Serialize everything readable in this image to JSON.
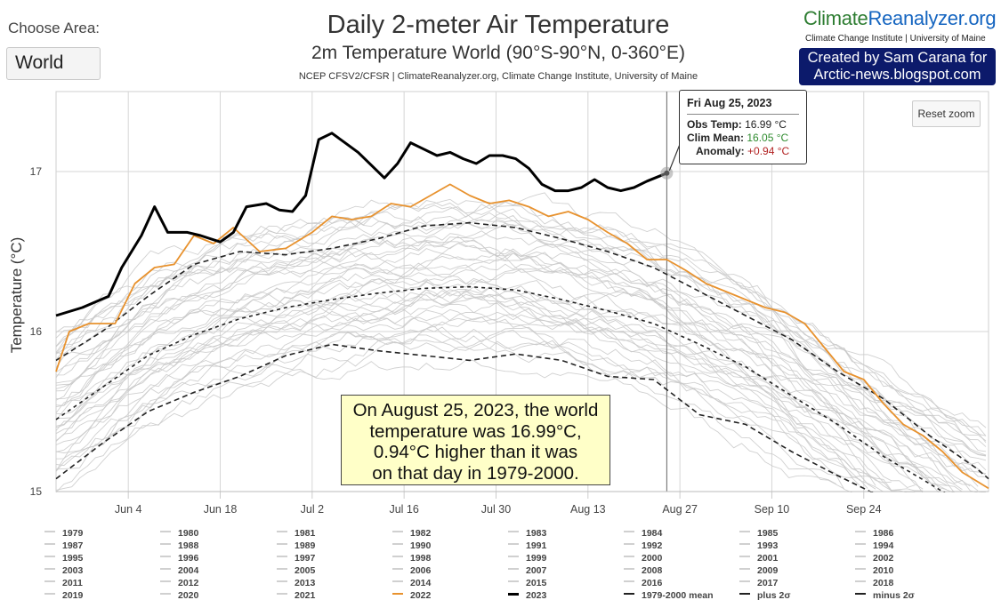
{
  "controls": {
    "choose_label": "Choose Area:",
    "area_value": "World"
  },
  "header": {
    "title": "Daily 2-meter Air Temperature",
    "subtitle": "2m Temperature World (90°S-90°N, 0-360°E)",
    "credit": "NCEP CFSV2/CFSR | ClimateReanalyzer.org, Climate Change Institute, University of Maine",
    "brand_part1": "Climate",
    "brand_part2": "Reanalyzer.org",
    "brand_sub": "Climate Change Institute | University of Maine",
    "created_line1": "Created by Sam Carana for",
    "created_line2": "Arctic-news.blogspot.com"
  },
  "reset_zoom": "Reset zoom",
  "tooltip": {
    "date": "Fri Aug 25, 2023",
    "obs_label": "Obs Temp:",
    "obs_value": "16.99 °C",
    "clim_label": "Clim Mean:",
    "clim_value": "16.05 °C",
    "anom_label": "Anomaly:",
    "anom_value": "+0.94 °C"
  },
  "annotation": {
    "line1": "On August 25, 2023, the world",
    "line2": "temperature was 16.99°C,",
    "line3": "0.94°C higher than it was",
    "line4": "on that day in 1979-2000."
  },
  "legend": [
    "1979",
    "1980",
    "1981",
    "1982",
    "1983",
    "1984",
    "1985",
    "1986",
    "1987",
    "1988",
    "1989",
    "1990",
    "1991",
    "1992",
    "1993",
    "1994",
    "1995",
    "1996",
    "1997",
    "1998",
    "1999",
    "2000",
    "2001",
    "2002",
    "2003",
    "2004",
    "2005",
    "2006",
    "2007",
    "2008",
    "2009",
    "2010",
    "2011",
    "2012",
    "2013",
    "2014",
    "2015",
    "2016",
    "2017",
    "2018",
    "2019",
    "2020",
    "2021",
    "2022",
    "2023",
    "1979-2000 mean",
    "plus 2σ",
    "minus 2σ"
  ],
  "colors": {
    "grey_years": "#c8c8c8",
    "y2022": "#e8922e",
    "y2023": "#000000",
    "mean": "#222222",
    "grid": "#d6d6d6"
  },
  "chart_data": {
    "type": "line",
    "title": "Daily 2-meter Air Temperature",
    "subtitle": "2m Temperature World (90°S-90°N, 0-360°E)",
    "xlabel": "",
    "ylabel": "Temperature (°C)",
    "x_is_date": true,
    "xlim": [
      "2023-05-24",
      "2023-10-13"
    ],
    "ylim": [
      15,
      17.5
    ],
    "y_ticks": [
      15,
      16,
      17
    ],
    "x_ticks": [
      {
        "date": "2023-06-04",
        "label": "Jun 4"
      },
      {
        "date": "2023-06-18",
        "label": "Jun 18"
      },
      {
        "date": "2023-07-02",
        "label": "Jul 2"
      },
      {
        "date": "2023-07-16",
        "label": "Jul 16"
      },
      {
        "date": "2023-07-30",
        "label": "Jul 30"
      },
      {
        "date": "2023-08-13",
        "label": "Aug 13"
      },
      {
        "date": "2023-08-27",
        "label": "Aug 27"
      },
      {
        "date": "2023-09-10",
        "label": "Sep 10"
      },
      {
        "date": "2023-09-24",
        "label": "Sep 24"
      }
    ],
    "grid": true,
    "crosshair_date": "2023-08-25",
    "series": [
      {
        "name": "2023",
        "color": "#000000",
        "points": [
          [
            "2023-05-24",
            16.1
          ],
          [
            "2023-05-28",
            16.15
          ],
          [
            "2023-06-01",
            16.22
          ],
          [
            "2023-06-03",
            16.4
          ],
          [
            "2023-06-06",
            16.6
          ],
          [
            "2023-06-08",
            16.78
          ],
          [
            "2023-06-10",
            16.62
          ],
          [
            "2023-06-13",
            16.62
          ],
          [
            "2023-06-15",
            16.6
          ],
          [
            "2023-06-18",
            16.56
          ],
          [
            "2023-06-20",
            16.62
          ],
          [
            "2023-06-22",
            16.78
          ],
          [
            "2023-06-25",
            16.8
          ],
          [
            "2023-06-27",
            16.76
          ],
          [
            "2023-06-29",
            16.75
          ],
          [
            "2023-07-01",
            16.85
          ],
          [
            "2023-07-03",
            17.2
          ],
          [
            "2023-07-05",
            17.24
          ],
          [
            "2023-07-07",
            17.18
          ],
          [
            "2023-07-09",
            17.12
          ],
          [
            "2023-07-11",
            17.04
          ],
          [
            "2023-07-13",
            16.96
          ],
          [
            "2023-07-15",
            17.05
          ],
          [
            "2023-07-17",
            17.18
          ],
          [
            "2023-07-19",
            17.14
          ],
          [
            "2023-07-21",
            17.1
          ],
          [
            "2023-07-23",
            17.12
          ],
          [
            "2023-07-25",
            17.08
          ],
          [
            "2023-07-27",
            17.05
          ],
          [
            "2023-07-29",
            17.1
          ],
          [
            "2023-07-31",
            17.1
          ],
          [
            "2023-08-02",
            17.08
          ],
          [
            "2023-08-04",
            17.02
          ],
          [
            "2023-08-06",
            16.92
          ],
          [
            "2023-08-08",
            16.88
          ],
          [
            "2023-08-10",
            16.88
          ],
          [
            "2023-08-12",
            16.9
          ],
          [
            "2023-08-14",
            16.95
          ],
          [
            "2023-08-16",
            16.9
          ],
          [
            "2023-08-18",
            16.88
          ],
          [
            "2023-08-20",
            16.9
          ],
          [
            "2023-08-22",
            16.94
          ],
          [
            "2023-08-25",
            16.99
          ]
        ]
      },
      {
        "name": "2022",
        "color": "#e8922e",
        "points": [
          [
            "2023-05-24",
            15.75
          ],
          [
            "2023-05-26",
            16.0
          ],
          [
            "2023-05-29",
            16.05
          ],
          [
            "2023-06-02",
            16.05
          ],
          [
            "2023-06-05",
            16.3
          ],
          [
            "2023-06-08",
            16.4
          ],
          [
            "2023-06-11",
            16.42
          ],
          [
            "2023-06-14",
            16.6
          ],
          [
            "2023-06-17",
            16.55
          ],
          [
            "2023-06-20",
            16.65
          ],
          [
            "2023-06-24",
            16.5
          ],
          [
            "2023-06-28",
            16.52
          ],
          [
            "2023-07-02",
            16.62
          ],
          [
            "2023-07-05",
            16.72
          ],
          [
            "2023-07-08",
            16.7
          ],
          [
            "2023-07-11",
            16.72
          ],
          [
            "2023-07-14",
            16.8
          ],
          [
            "2023-07-17",
            16.78
          ],
          [
            "2023-07-20",
            16.85
          ],
          [
            "2023-07-23",
            16.92
          ],
          [
            "2023-07-26",
            16.85
          ],
          [
            "2023-07-29",
            16.8
          ],
          [
            "2023-08-01",
            16.82
          ],
          [
            "2023-08-04",
            16.78
          ],
          [
            "2023-08-07",
            16.72
          ],
          [
            "2023-08-10",
            16.75
          ],
          [
            "2023-08-13",
            16.7
          ],
          [
            "2023-08-16",
            16.62
          ],
          [
            "2023-08-19",
            16.55
          ],
          [
            "2023-08-22",
            16.45
          ],
          [
            "2023-08-25",
            16.45
          ],
          [
            "2023-08-28",
            16.38
          ],
          [
            "2023-08-31",
            16.3
          ],
          [
            "2023-09-03",
            16.25
          ],
          [
            "2023-09-06",
            16.2
          ],
          [
            "2023-09-09",
            16.15
          ],
          [
            "2023-09-12",
            16.12
          ],
          [
            "2023-09-15",
            16.05
          ],
          [
            "2023-09-18",
            15.9
          ],
          [
            "2023-09-21",
            15.75
          ],
          [
            "2023-09-24",
            15.7
          ],
          [
            "2023-09-27",
            15.55
          ],
          [
            "2023-09-30",
            15.42
          ],
          [
            "2023-10-03",
            15.35
          ],
          [
            "2023-10-06",
            15.25
          ],
          [
            "2023-10-09",
            15.12
          ],
          [
            "2023-10-13",
            15.02
          ]
        ]
      },
      {
        "name": "1979-2000 mean",
        "color": "#222222",
        "dash": "4,4",
        "points": [
          [
            "2023-05-24",
            15.45
          ],
          [
            "2023-05-31",
            15.65
          ],
          [
            "2023-06-07",
            15.85
          ],
          [
            "2023-06-14",
            15.98
          ],
          [
            "2023-06-21",
            16.08
          ],
          [
            "2023-06-28",
            16.15
          ],
          [
            "2023-07-05",
            16.2
          ],
          [
            "2023-07-12",
            16.24
          ],
          [
            "2023-07-19",
            16.27
          ],
          [
            "2023-07-26",
            16.28
          ],
          [
            "2023-08-02",
            16.26
          ],
          [
            "2023-08-09",
            16.2
          ],
          [
            "2023-08-16",
            16.13
          ],
          [
            "2023-08-23",
            16.05
          ],
          [
            "2023-08-30",
            15.92
          ],
          [
            "2023-09-06",
            15.78
          ],
          [
            "2023-09-13",
            15.6
          ],
          [
            "2023-09-20",
            15.42
          ],
          [
            "2023-09-27",
            15.22
          ],
          [
            "2023-10-04",
            15.05
          ],
          [
            "2023-10-08",
            14.95
          ]
        ]
      },
      {
        "name": "plus 2σ",
        "color": "#222222",
        "dash": "6,4",
        "points": [
          [
            "2023-05-24",
            15.82
          ],
          [
            "2023-05-31",
            16.0
          ],
          [
            "2023-06-07",
            16.22
          ],
          [
            "2023-06-14",
            16.42
          ],
          [
            "2023-06-21",
            16.5
          ],
          [
            "2023-06-28",
            16.48
          ],
          [
            "2023-07-05",
            16.52
          ],
          [
            "2023-07-12",
            16.58
          ],
          [
            "2023-07-19",
            16.66
          ],
          [
            "2023-07-26",
            16.68
          ],
          [
            "2023-08-02",
            16.65
          ],
          [
            "2023-08-09",
            16.58
          ],
          [
            "2023-08-16",
            16.5
          ],
          [
            "2023-08-23",
            16.4
          ],
          [
            "2023-08-30",
            16.25
          ],
          [
            "2023-09-06",
            16.1
          ],
          [
            "2023-09-13",
            15.95
          ],
          [
            "2023-09-20",
            15.75
          ],
          [
            "2023-09-27",
            15.58
          ],
          [
            "2023-10-04",
            15.35
          ],
          [
            "2023-10-11",
            15.15
          ],
          [
            "2023-10-13",
            15.08
          ]
        ]
      },
      {
        "name": "minus 2σ",
        "color": "#222222",
        "dash": "6,4",
        "points": [
          [
            "2023-05-24",
            15.08
          ],
          [
            "2023-05-31",
            15.3
          ],
          [
            "2023-06-07",
            15.5
          ],
          [
            "2023-06-14",
            15.62
          ],
          [
            "2023-06-21",
            15.72
          ],
          [
            "2023-06-28",
            15.85
          ],
          [
            "2023-07-05",
            15.92
          ],
          [
            "2023-07-12",
            15.88
          ],
          [
            "2023-07-19",
            15.85
          ],
          [
            "2023-07-26",
            15.82
          ],
          [
            "2023-08-02",
            15.86
          ],
          [
            "2023-08-09",
            15.82
          ],
          [
            "2023-08-16",
            15.72
          ],
          [
            "2023-08-23",
            15.7
          ],
          [
            "2023-08-30",
            15.48
          ],
          [
            "2023-09-06",
            15.42
          ],
          [
            "2023-09-13",
            15.25
          ],
          [
            "2023-09-20",
            15.1
          ],
          [
            "2023-09-26",
            14.98
          ]
        ]
      }
    ]
  }
}
